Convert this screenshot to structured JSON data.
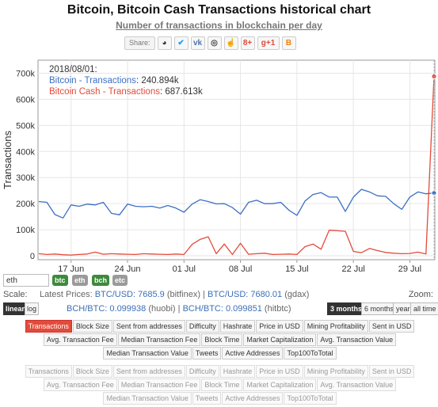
{
  "title": "Bitcoin, Bitcoin Cash Transactions historical chart",
  "subtitle": "Number of transactions in blockchain per day",
  "share": {
    "label": "Share:",
    "buttons": [
      {
        "name": "reddit-icon",
        "glyph": "◕",
        "color": "#333333"
      },
      {
        "name": "twitter-icon",
        "glyph": "✔",
        "color": "#1da1f2"
      },
      {
        "name": "vk-icon",
        "glyph": "vk",
        "color": "#4a76a8"
      },
      {
        "name": "weibo-icon",
        "glyph": "◎",
        "color": "#444444"
      },
      {
        "name": "like-icon",
        "glyph": "☝",
        "color": "#3b5998"
      },
      {
        "name": "googleplus-icon",
        "glyph": "8+",
        "color": "#dd4b39"
      },
      {
        "name": "googleplus-one-icon",
        "glyph": "g+1",
        "color": "#dd4b39"
      },
      {
        "name": "blogger-icon",
        "glyph": "B",
        "color": "#f57d00"
      }
    ]
  },
  "tooltip": {
    "date": "2018/08/01:",
    "btc_label": "Bitcoin - Transactions",
    "btc_value": "240.894k",
    "bch_label": "Bitcoin Cash - Transactions",
    "bch_value": "687.613k"
  },
  "chart_data": {
    "type": "line",
    "ylabel": "Transactions",
    "ylim": [
      -15000,
      750000
    ],
    "yticks": [
      0,
      100000,
      200000,
      300000,
      400000,
      500000,
      600000,
      700000
    ],
    "ytick_labels": [
      "0",
      "100k",
      "200k",
      "300k",
      "400k",
      "500k",
      "600k",
      "700k"
    ],
    "x_dates": [
      "2018-06-13",
      "2018-06-14",
      "2018-06-15",
      "2018-06-16",
      "2018-06-17",
      "2018-06-18",
      "2018-06-19",
      "2018-06-20",
      "2018-06-21",
      "2018-06-22",
      "2018-06-23",
      "2018-06-24",
      "2018-06-25",
      "2018-06-26",
      "2018-06-27",
      "2018-06-28",
      "2018-06-29",
      "2018-06-30",
      "2018-07-01",
      "2018-07-02",
      "2018-07-03",
      "2018-07-04",
      "2018-07-05",
      "2018-07-06",
      "2018-07-07",
      "2018-07-08",
      "2018-07-09",
      "2018-07-10",
      "2018-07-11",
      "2018-07-12",
      "2018-07-13",
      "2018-07-14",
      "2018-07-15",
      "2018-07-16",
      "2018-07-17",
      "2018-07-18",
      "2018-07-19",
      "2018-07-20",
      "2018-07-21",
      "2018-07-22",
      "2018-07-23",
      "2018-07-24",
      "2018-07-25",
      "2018-07-26",
      "2018-07-27",
      "2018-07-28",
      "2018-07-29",
      "2018-07-30",
      "2018-07-31",
      "2018-08-01"
    ],
    "xtick_labels": [
      {
        "date": "2018-06-17",
        "label": "17 Jun"
      },
      {
        "date": "2018-06-24",
        "label": "24 Jun"
      },
      {
        "date": "2018-07-01",
        "label": "01 Jul"
      },
      {
        "date": "2018-07-08",
        "label": "08 Jul"
      },
      {
        "date": "2018-07-15",
        "label": "15 Jul"
      },
      {
        "date": "2018-07-22",
        "label": "22 Jul"
      },
      {
        "date": "2018-07-29",
        "label": "29 Jul"
      }
    ],
    "series": [
      {
        "name": "Bitcoin - Transactions",
        "color": "#3c6fc4",
        "values": [
          208000,
          205000,
          158000,
          145000,
          195000,
          190000,
          198000,
          195000,
          205000,
          163000,
          157000,
          198000,
          190000,
          188000,
          190000,
          183000,
          193000,
          183000,
          167000,
          198000,
          215000,
          208000,
          199000,
          200000,
          185000,
          160000,
          205000,
          213000,
          200000,
          200000,
          205000,
          175000,
          155000,
          210000,
          235000,
          242000,
          225000,
          225000,
          170000,
          225000,
          255000,
          245000,
          230000,
          228000,
          200000,
          178000,
          225000,
          245000,
          238000,
          240894
        ]
      },
      {
        "name": "Bitcoin Cash - Transactions",
        "color": "#e34b3a",
        "values": [
          8000,
          5000,
          7000,
          4000,
          3000,
          5000,
          7000,
          14000,
          6000,
          8000,
          7000,
          6000,
          5000,
          8000,
          7000,
          6000,
          5000,
          7000,
          5000,
          44000,
          63000,
          73000,
          8000,
          45000,
          5000,
          48000,
          6000,
          8000,
          10000,
          5000,
          6000,
          7000,
          5000,
          35000,
          45000,
          25000,
          98000,
          96000,
          94000,
          17000,
          12000,
          28000,
          20000,
          13000,
          10000,
          8000,
          9000,
          14000,
          7000,
          687613
        ]
      }
    ],
    "grid": true
  },
  "controls": {
    "coin_input": "eth",
    "coins": [
      {
        "label": "btc",
        "color": "#3c8a3c"
      },
      {
        "label": "eth",
        "color": "#9a9a9a"
      },
      {
        "label": "bch",
        "color": "#3c8a3c"
      },
      {
        "label": "etc",
        "color": "#9a9a9a"
      }
    ],
    "scale_label": "Scale:",
    "scale_linear": "linear",
    "scale_log": "log",
    "latest_prices_label": "Latest Prices:",
    "btc_usd_1": "BTC/USD: 7685.9",
    "btc_usd_1_src": "(bitfinex)",
    "btc_usd_2": "BTC/USD: 7680.01",
    "btc_usd_2_src": "(gdax)",
    "bch_btc_1": "BCH/BTC: 0.099938",
    "bch_btc_1_src": "(huobi)",
    "bch_btc_2": "BCH/BTC: 0.099851",
    "bch_btc_2_src": "(hitbtc)",
    "zoom_label": "Zoom:",
    "zoom_options": [
      "3 months",
      "6 months",
      "year",
      "all time"
    ],
    "zoom_selected": "3 months"
  },
  "metrics_active": "Transactions",
  "metrics": [
    "Transactions",
    "Block Size",
    "Sent from addresses",
    "Difficulty",
    "Hashrate",
    "Price in USD",
    "Mining Profitability",
    "Sent in USD",
    "Avg. Transaction Fee",
    "Median Transaction Fee",
    "Block Time",
    "Market Capitalization",
    "Avg. Transaction Value",
    "Median Transaction Value",
    "Tweets",
    "Active Addresses",
    "Top100ToTotal"
  ]
}
